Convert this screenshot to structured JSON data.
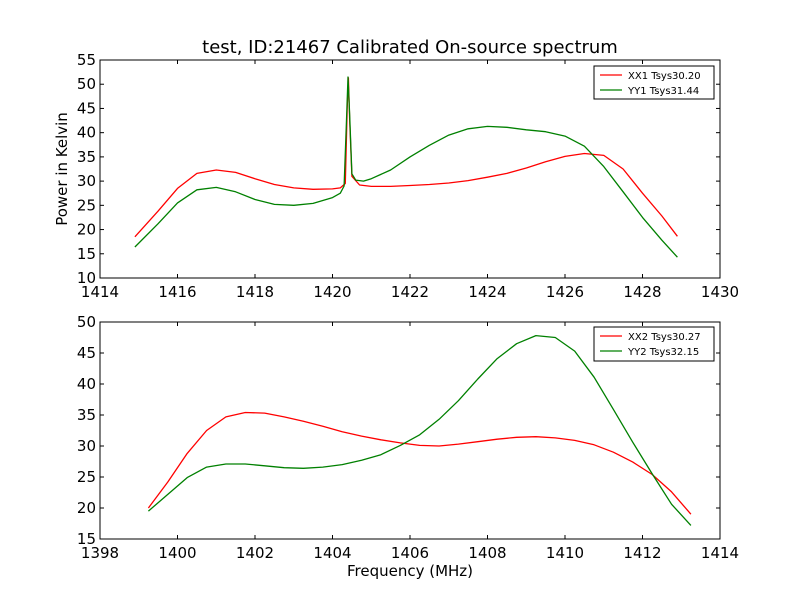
{
  "chart_data": [
    {
      "type": "line",
      "title": "test, ID:21467 Calibrated On-source spectrum",
      "xlabel": "",
      "ylabel": "Power in Kelvin",
      "xlim": [
        1414,
        1430
      ],
      "ylim": [
        10,
        55
      ],
      "xticks": [
        1414,
        1416,
        1418,
        1420,
        1422,
        1424,
        1426,
        1428,
        1430
      ],
      "yticks": [
        10,
        15,
        20,
        25,
        30,
        35,
        40,
        45,
        50,
        55
      ],
      "grid": false,
      "legend_position": "top-right",
      "series": [
        {
          "name": "XX1 Tsys30.20",
          "color": "#ff0000",
          "points": [
            [
              1414.9,
              18.5
            ],
            [
              1415.5,
              23.8
            ],
            [
              1416.0,
              28.5
            ],
            [
              1416.5,
              31.6
            ],
            [
              1417.0,
              32.3
            ],
            [
              1417.5,
              31.8
            ],
            [
              1418.0,
              30.5
            ],
            [
              1418.5,
              29.3
            ],
            [
              1419.0,
              28.6
            ],
            [
              1419.5,
              28.3
            ],
            [
              1420.0,
              28.4
            ],
            [
              1420.2,
              28.6
            ],
            [
              1420.33,
              29.5
            ],
            [
              1420.38,
              45.0
            ],
            [
              1420.41,
              51.3
            ],
            [
              1420.44,
              43.0
            ],
            [
              1420.5,
              31.0
            ],
            [
              1420.7,
              29.2
            ],
            [
              1421.0,
              28.9
            ],
            [
              1421.5,
              28.9
            ],
            [
              1422.0,
              29.1
            ],
            [
              1422.5,
              29.3
            ],
            [
              1423.0,
              29.6
            ],
            [
              1423.5,
              30.1
            ],
            [
              1424.0,
              30.8
            ],
            [
              1424.5,
              31.6
            ],
            [
              1425.0,
              32.7
            ],
            [
              1425.5,
              34.0
            ],
            [
              1426.0,
              35.1
            ],
            [
              1426.5,
              35.7
            ],
            [
              1427.0,
              35.3
            ],
            [
              1427.5,
              32.5
            ],
            [
              1428.0,
              27.5
            ],
            [
              1428.5,
              22.8
            ],
            [
              1428.9,
              18.6
            ]
          ]
        },
        {
          "name": "YY1 Tsys31.44",
          "color": "#008000",
          "points": [
            [
              1414.9,
              16.4
            ],
            [
              1415.5,
              21.2
            ],
            [
              1416.0,
              25.5
            ],
            [
              1416.5,
              28.2
            ],
            [
              1417.0,
              28.7
            ],
            [
              1417.5,
              27.8
            ],
            [
              1418.0,
              26.2
            ],
            [
              1418.5,
              25.2
            ],
            [
              1419.0,
              25.0
            ],
            [
              1419.5,
              25.4
            ],
            [
              1420.0,
              26.6
            ],
            [
              1420.2,
              27.5
            ],
            [
              1420.3,
              29.0
            ],
            [
              1420.36,
              42.0
            ],
            [
              1420.4,
              51.5
            ],
            [
              1420.44,
              44.0
            ],
            [
              1420.5,
              31.5
            ],
            [
              1420.6,
              30.2
            ],
            [
              1420.8,
              30.0
            ],
            [
              1421.0,
              30.5
            ],
            [
              1421.5,
              32.3
            ],
            [
              1422.0,
              35.0
            ],
            [
              1422.5,
              37.4
            ],
            [
              1423.0,
              39.5
            ],
            [
              1423.5,
              40.8
            ],
            [
              1424.0,
              41.3
            ],
            [
              1424.5,
              41.1
            ],
            [
              1425.0,
              40.6
            ],
            [
              1425.5,
              40.2
            ],
            [
              1426.0,
              39.3
            ],
            [
              1426.5,
              37.2
            ],
            [
              1427.0,
              33.0
            ],
            [
              1427.5,
              27.8
            ],
            [
              1428.0,
              22.5
            ],
            [
              1428.5,
              17.8
            ],
            [
              1428.9,
              14.3
            ]
          ]
        }
      ]
    },
    {
      "type": "line",
      "title": "",
      "xlabel": "Frequency (MHz)",
      "ylabel": "",
      "xlim": [
        1398,
        1414
      ],
      "ylim": [
        15,
        50
      ],
      "xticks": [
        1398,
        1400,
        1402,
        1404,
        1406,
        1408,
        1410,
        1412,
        1414
      ],
      "yticks": [
        15,
        20,
        25,
        30,
        35,
        40,
        45,
        50
      ],
      "grid": false,
      "legend_position": "top-right",
      "series": [
        {
          "name": "XX2 Tsys30.27",
          "color": "#ff0000",
          "points": [
            [
              1399.25,
              20.0
            ],
            [
              1399.75,
              24.2
            ],
            [
              1400.25,
              28.8
            ],
            [
              1400.75,
              32.5
            ],
            [
              1401.25,
              34.7
            ],
            [
              1401.75,
              35.4
            ],
            [
              1402.25,
              35.3
            ],
            [
              1402.75,
              34.7
            ],
            [
              1403.25,
              34.0
            ],
            [
              1403.75,
              33.2
            ],
            [
              1404.25,
              32.3
            ],
            [
              1404.75,
              31.6
            ],
            [
              1405.25,
              31.0
            ],
            [
              1405.75,
              30.5
            ],
            [
              1406.25,
              30.1
            ],
            [
              1406.75,
              30.0
            ],
            [
              1407.25,
              30.3
            ],
            [
              1407.75,
              30.7
            ],
            [
              1408.25,
              31.1
            ],
            [
              1408.75,
              31.4
            ],
            [
              1409.25,
              31.5
            ],
            [
              1409.75,
              31.3
            ],
            [
              1410.25,
              30.9
            ],
            [
              1410.75,
              30.2
            ],
            [
              1411.25,
              29.0
            ],
            [
              1411.75,
              27.4
            ],
            [
              1412.25,
              25.4
            ],
            [
              1412.75,
              22.6
            ],
            [
              1413.25,
              19.0
            ]
          ]
        },
        {
          "name": "YY2 Tsys32.15",
          "color": "#008000",
          "points": [
            [
              1399.25,
              19.5
            ],
            [
              1399.75,
              22.2
            ],
            [
              1400.25,
              24.9
            ],
            [
              1400.75,
              26.6
            ],
            [
              1401.25,
              27.1
            ],
            [
              1401.75,
              27.1
            ],
            [
              1402.25,
              26.8
            ],
            [
              1402.75,
              26.5
            ],
            [
              1403.25,
              26.4
            ],
            [
              1403.75,
              26.6
            ],
            [
              1404.25,
              27.0
            ],
            [
              1404.75,
              27.7
            ],
            [
              1405.25,
              28.6
            ],
            [
              1405.75,
              30.1
            ],
            [
              1406.25,
              31.8
            ],
            [
              1406.75,
              34.3
            ],
            [
              1407.25,
              37.3
            ],
            [
              1407.75,
              40.8
            ],
            [
              1408.25,
              44.1
            ],
            [
              1408.75,
              46.5
            ],
            [
              1409.25,
              47.8
            ],
            [
              1409.75,
              47.5
            ],
            [
              1410.25,
              45.3
            ],
            [
              1410.75,
              41.1
            ],
            [
              1411.25,
              35.9
            ],
            [
              1411.75,
              30.6
            ],
            [
              1412.25,
              25.5
            ],
            [
              1412.75,
              20.6
            ],
            [
              1413.25,
              17.2
            ]
          ]
        }
      ]
    }
  ]
}
